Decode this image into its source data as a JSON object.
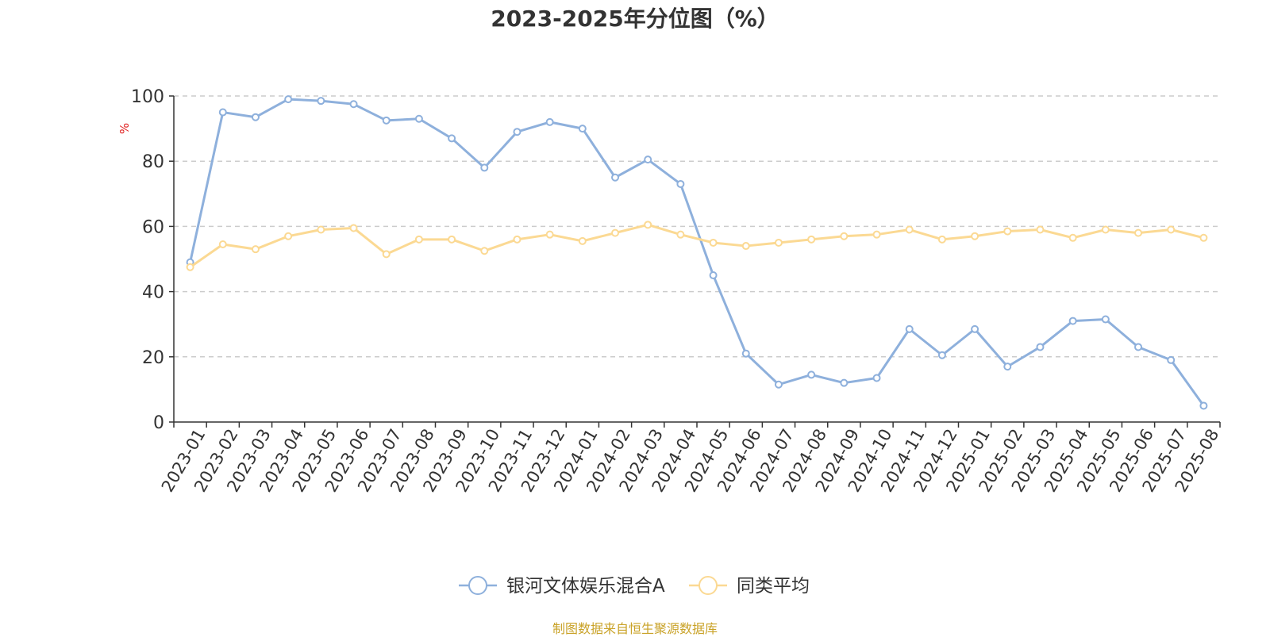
{
  "chart_data": {
    "type": "line",
    "title": "2023-2025年分位图（%）",
    "ylabel": "%",
    "xlabel": "",
    "ylim": [
      0,
      100
    ],
    "yticks": [
      0,
      20,
      40,
      60,
      80,
      100
    ],
    "grid": "horizontal dashed",
    "legend_position": "bottom-center",
    "x": [
      "2023-01",
      "2023-02",
      "2023-03",
      "2023-04",
      "2023-05",
      "2023-06",
      "2023-07",
      "2023-08",
      "2023-09",
      "2023-10",
      "2023-11",
      "2023-12",
      "2024-01",
      "2024-02",
      "2024-03",
      "2024-04",
      "2024-05",
      "2024-06",
      "2024-07",
      "2024-08",
      "2024-09",
      "2024-10",
      "2024-11",
      "2024-12",
      "2025-01",
      "2025-02",
      "2025-03",
      "2025-04",
      "2025-05",
      "2025-06",
      "2025-07",
      "2025-08"
    ],
    "series": [
      {
        "name": "银河文体娱乐混合A",
        "color": "#8eb0dc",
        "values": [
          49,
          95,
          93.5,
          99,
          98.5,
          97.5,
          92.5,
          93,
          87,
          78,
          89,
          92,
          90,
          75,
          80.5,
          73,
          45,
          21,
          11.5,
          14.5,
          12,
          13.5,
          28.5,
          20.5,
          28.5,
          17,
          23,
          31,
          31.5,
          23,
          19,
          5
        ]
      },
      {
        "name": "同类平均",
        "color": "#fbd993",
        "values": [
          47.5,
          54.5,
          53,
          57,
          59,
          59.5,
          51.5,
          56,
          56,
          52.5,
          56,
          57.5,
          55.5,
          58,
          60.5,
          57.5,
          55,
          54,
          55,
          56,
          57,
          57.5,
          59,
          56,
          57,
          58.5,
          59,
          56.5,
          59,
          58,
          59,
          56.5
        ]
      }
    ]
  },
  "source_note": "制图数据来自恒生聚源数据库"
}
